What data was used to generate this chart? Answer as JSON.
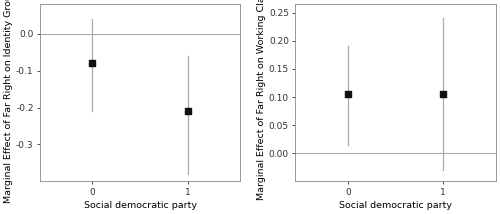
{
  "left": {
    "points": [
      -0.08,
      -0.21
    ],
    "ci_upper": [
      0.04,
      -0.06
    ],
    "ci_lower": [
      -0.21,
      -0.38
    ],
    "x": [
      0,
      1
    ],
    "ylabel": "Marginal Effect of Far Right on Identity Groups",
    "xlabel": "Social democratic party",
    "hline": 0.0,
    "ylim": [
      -0.4,
      0.08
    ],
    "yticks": [
      0.0,
      -0.1,
      -0.2,
      -0.3
    ],
    "ytick_labels": [
      "0.0",
      "-0.1",
      "-0.2",
      "-0.3"
    ]
  },
  "right": {
    "points": [
      0.105,
      0.106
    ],
    "ci_upper": [
      0.19,
      0.24
    ],
    "ci_lower": [
      0.015,
      -0.03
    ],
    "x": [
      0,
      1
    ],
    "ylabel": "Marginal Effect of Far Right on Working Class",
    "xlabel": "Social democratic party",
    "hline": 0.0,
    "ylim": [
      -0.05,
      0.265
    ],
    "yticks": [
      0.0,
      0.05,
      0.1,
      0.15,
      0.2,
      0.25
    ],
    "ytick_labels": [
      "0.00",
      "0.05",
      "0.10",
      "0.15",
      "0.20",
      "0.25"
    ]
  },
  "point_color": "#111111",
  "ci_line_color": "#aaaaaa",
  "hline_color": "#aaaaaa",
  "point_size": 18,
  "ci_linewidth": 0.9,
  "hline_linewidth": 0.8,
  "tick_fontsize": 6.5,
  "label_fontsize": 6.8,
  "axis_linewidth": 0.6,
  "spine_color": "#888888",
  "bg_color": "#ffffff",
  "xlim": [
    -0.55,
    1.55
  ]
}
